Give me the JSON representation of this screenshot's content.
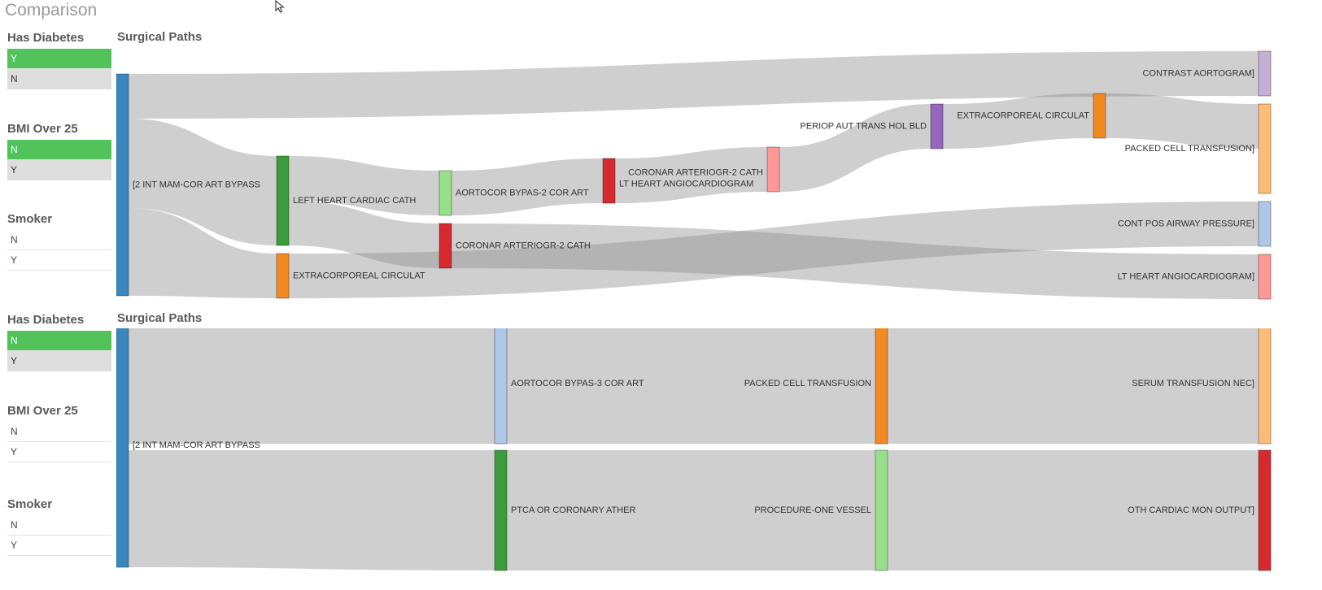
{
  "app": {
    "title": "Comparison"
  },
  "states": [
    {
      "filters": [
        {
          "title": "Has Diabetes",
          "values": [
            {
              "label": "Y",
              "state": "selected"
            },
            {
              "label": "N",
              "state": "alternative"
            }
          ]
        },
        {
          "title": "BMI Over 25",
          "values": [
            {
              "label": "N",
              "state": "selected"
            },
            {
              "label": "Y",
              "state": "alternative"
            }
          ]
        },
        {
          "title": "Smoker",
          "values": [
            {
              "label": "N",
              "state": "possible"
            },
            {
              "label": "Y",
              "state": "possible"
            }
          ]
        }
      ],
      "chart_title": "Surgical Paths"
    },
    {
      "filters": [
        {
          "title": "Has Diabetes",
          "values": [
            {
              "label": "N",
              "state": "selected"
            },
            {
              "label": "Y",
              "state": "alternative"
            }
          ]
        },
        {
          "title": "BMI Over 25",
          "values": [
            {
              "label": "N",
              "state": "possible"
            },
            {
              "label": "Y",
              "state": "possible"
            }
          ]
        },
        {
          "title": "Smoker",
          "values": [
            {
              "label": "N",
              "state": "possible"
            },
            {
              "label": "Y",
              "state": "possible"
            }
          ]
        }
      ],
      "chart_title": "Surgical Paths"
    }
  ],
  "chart_data": [
    {
      "type": "sankey",
      "title": "Surgical Paths",
      "nodes": [
        {
          "name": "[2 INT MAM-COR ART BYPASS",
          "color": "#3a87c0"
        },
        {
          "name": "LEFT HEART CARDIAC CATH",
          "color": "#3c9b3a"
        },
        {
          "name": "EXTRACORPOREAL CIRCULAT",
          "color": "#f28a21"
        },
        {
          "name": "AORTOCOR BYPAS-2 COR ART",
          "color": "#98df8a"
        },
        {
          "name": "CORONAR ARTERIOGR-2 CATH",
          "color": "#d62a2f"
        },
        {
          "name": "LT HEART ANGIOCARDIOGRAM",
          "color": "#d62a2f"
        },
        {
          "name": "CORONAR ARTERIOGR-2 CATH",
          "color": "#ff9896"
        },
        {
          "name": "PERIOP AUT TRANS HOL BLD",
          "color": "#9467bd"
        },
        {
          "name": "EXTRACORPOREAL CIRCULAT",
          "color": "#f28a21"
        },
        {
          "name": "CONTRAST AORTOGRAM]",
          "color": "#c5b0d5"
        },
        {
          "name": "PACKED CELL TRANSFUSION]",
          "color": "#ffbb78"
        },
        {
          "name": "CONT POS AIRWAY PRESSURE]",
          "color": "#aec7e8"
        },
        {
          "name": "LT HEART ANGIOCARDIOGRAM]",
          "color": "#ff9896"
        }
      ],
      "links": [
        {
          "source": 0,
          "target": 9,
          "value": 1
        },
        {
          "source": 0,
          "target": 1,
          "value": 2
        },
        {
          "source": 0,
          "target": 2,
          "value": 1
        },
        {
          "source": 1,
          "target": 3,
          "value": 1
        },
        {
          "source": 1,
          "target": 4,
          "value": 1
        },
        {
          "source": 2,
          "target": 11,
          "value": 1
        },
        {
          "source": 3,
          "target": 5,
          "value": 1
        },
        {
          "source": 4,
          "target": 12,
          "value": 1
        },
        {
          "source": 5,
          "target": 6,
          "value": 1
        },
        {
          "source": 6,
          "target": 7,
          "value": 1
        },
        {
          "source": 7,
          "target": 8,
          "value": 1
        },
        {
          "source": 8,
          "target": 10,
          "value": 1
        }
      ]
    },
    {
      "type": "sankey",
      "title": "Surgical Paths",
      "nodes": [
        {
          "name": "[2 INT MAM-COR ART BYPASS",
          "color": "#3a87c0"
        },
        {
          "name": "AORTOCOR BYPAS-3 COR ART",
          "color": "#aec7e8"
        },
        {
          "name": "PTCA OR CORONARY ATHER",
          "color": "#3c9b3a"
        },
        {
          "name": "PACKED CELL TRANSFUSION",
          "color": "#f28a21"
        },
        {
          "name": "PROCEDURE-ONE VESSEL",
          "color": "#98df8a"
        },
        {
          "name": "SERUM TRANSFUSION NEC]",
          "color": "#ffbb78"
        },
        {
          "name": "OTH CARDIAC MON OUTPUT]",
          "color": "#d62a2f"
        }
      ],
      "links": [
        {
          "source": 0,
          "target": 1,
          "value": 1
        },
        {
          "source": 0,
          "target": 2,
          "value": 1
        },
        {
          "source": 1,
          "target": 3,
          "value": 1
        },
        {
          "source": 2,
          "target": 4,
          "value": 1
        },
        {
          "source": 3,
          "target": 5,
          "value": 1
        },
        {
          "source": 4,
          "target": 6,
          "value": 1
        }
      ]
    }
  ]
}
